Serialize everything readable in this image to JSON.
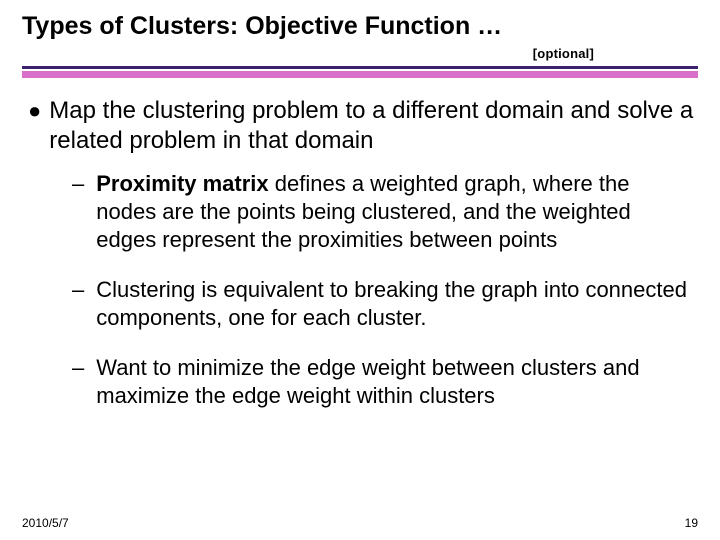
{
  "header": {
    "title": "Types of Clusters: Objective Function …",
    "badge": "[optional]"
  },
  "separator": {
    "top_color": "#3a226e",
    "bottom_color": "#d86fcb"
  },
  "content": {
    "main_point": "Map the clustering problem to a different domain and solve a related problem in that domain",
    "subpoints": [
      {
        "bold_lead": "Proximity matrix",
        "rest": " defines a weighted graph, where the nodes are the points being clustered, and the weighted edges represent the proximities between points"
      },
      {
        "bold_lead": "",
        "rest": " Clustering is equivalent to breaking the graph into connected components, one for each cluster."
      },
      {
        "bold_lead": "",
        "rest": "Want to minimize the edge weight between clusters and maximize the edge weight within clusters"
      }
    ]
  },
  "footer": {
    "date": "2010/5/7",
    "page": "19"
  },
  "fonts": {
    "title_size": 25,
    "body_l1_size": 24,
    "body_l2_size": 22,
    "footer_size": 12
  }
}
